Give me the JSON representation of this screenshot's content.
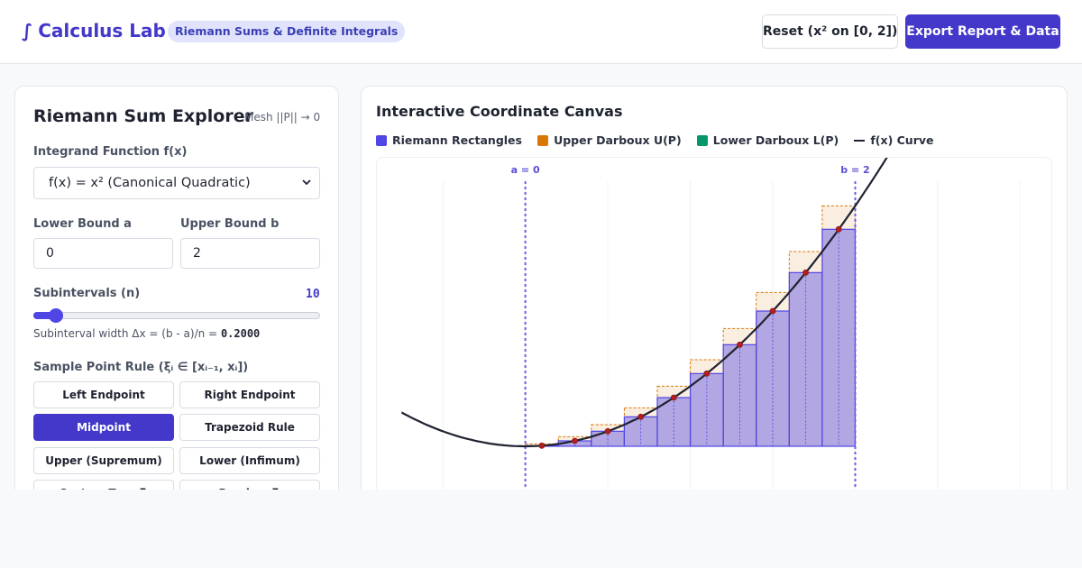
{
  "header": {
    "brand_symbol": "∫",
    "brand_name": "Calculus Lab",
    "subtitle_pill": "Riemann Sums & Definite Integrals",
    "reset_label": "Reset (x² on [0, 2])",
    "export_label": "Export Report & Data",
    "accent_color": "#4338ca"
  },
  "controls": {
    "title": "Riemann Sum Explorer",
    "mesh_note": "Mesh ||P|| → 0",
    "integrand_label": "Integrand Function f(x)",
    "integrand_selected": "f(x) = x² (Canonical Quadratic)",
    "lower_label": "Lower Bound a",
    "lower_value": "0",
    "upper_label": "Upper Bound b",
    "upper_value": "2",
    "n_label": "Subintervals (n)",
    "n_value": "10",
    "n_min": 1,
    "n_max": 200,
    "dx_text": "Subinterval width Δx = (b - a)/n =",
    "dx_value": "0.2000",
    "rule_label": "Sample Point Rule (ξᵢ ∈ [xᵢ₋₁, xᵢ])",
    "rules": [
      {
        "label": "Left Endpoint",
        "active": false
      },
      {
        "label": "Right Endpoint",
        "active": false
      },
      {
        "label": "Midpoint",
        "active": true
      },
      {
        "label": "Trapezoid Rule",
        "active": false
      },
      {
        "label": "Upper (Supremum)",
        "active": false
      },
      {
        "label": "Lower (Infimum)",
        "active": false
      },
      {
        "label": "Custom Tags ξᵢ",
        "active": false
      },
      {
        "label": "Random ξᵢ",
        "active": false
      }
    ]
  },
  "canvas": {
    "title": "Interactive Coordinate Canvas",
    "legend": [
      {
        "label": "Riemann Rectangles",
        "color": "#4f46e5",
        "kind": "swatch"
      },
      {
        "label": "Upper Darboux U(P)",
        "color": "#d97706",
        "kind": "swatch"
      },
      {
        "label": "Lower Darboux L(P)",
        "color": "#059669",
        "kind": "swatch"
      },
      {
        "label": "f(x) Curve",
        "color": "#1f2330",
        "kind": "line"
      }
    ],
    "a_label": "a = 0",
    "b_label": "b = 2",
    "function": "x^2",
    "a": 0,
    "b": 2,
    "n": 10,
    "x_range": [
      -0.9,
      3.2
    ],
    "y_range": [
      -1.2,
      4.8
    ]
  }
}
